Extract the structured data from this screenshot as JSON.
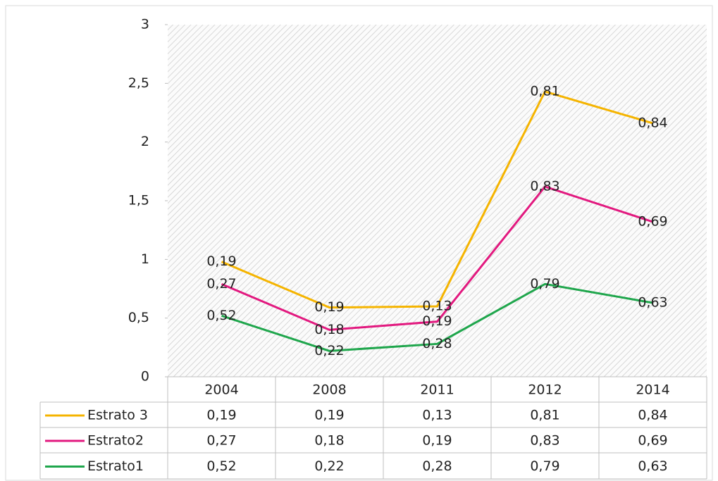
{
  "chart_data": {
    "type": "line",
    "stacked": true,
    "data_table": true,
    "categories": [
      "2004",
      "2008",
      "2011",
      "2012",
      "2014"
    ],
    "series": [
      {
        "name": "Estrato 3",
        "color": "#f5b400",
        "values": [
          0.19,
          0.19,
          0.13,
          0.81,
          0.84
        ],
        "value_labels": [
          "0,19",
          "0,19",
          "0,13",
          "0,81",
          "0,84"
        ]
      },
      {
        "name": "Estrato2",
        "color": "#e2197f",
        "values": [
          0.27,
          0.18,
          0.19,
          0.83,
          0.69
        ],
        "value_labels": [
          "0,27",
          "0,18",
          "0,19",
          "0,83",
          "0,69"
        ]
      },
      {
        "name": "Estrato1",
        "color": "#1fa64c",
        "values": [
          0.52,
          0.22,
          0.28,
          0.79,
          0.63
        ],
        "value_labels": [
          "0,52",
          "0,22",
          "0,28",
          "0,79",
          "0,63"
        ]
      }
    ],
    "ylim": [
      0,
      3
    ],
    "yticks": [
      0,
      {
        "value": 0.5,
        "label": "0,5"
      },
      1,
      {
        "value": 1.5,
        "label": "1,5"
      },
      2,
      {
        "value": 2.5,
        "label": "2,5"
      },
      3
    ]
  }
}
